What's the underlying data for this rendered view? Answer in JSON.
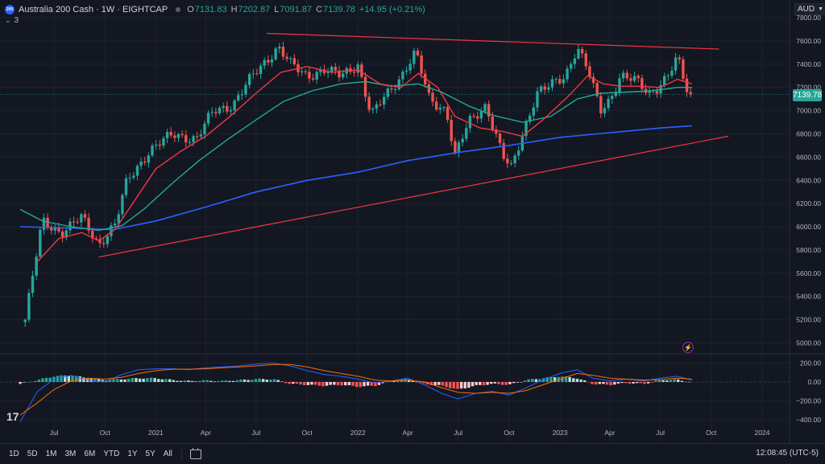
{
  "header": {
    "symbol_title": "Australia 200 Cash · 1W · EIGHTCAP",
    "logo_text": "200",
    "ohlc": [
      {
        "label": "O",
        "value": "7131.83"
      },
      {
        "label": "H",
        "value": "7202.87"
      },
      {
        "label": "L",
        "value": "7091.87"
      },
      {
        "label": "C",
        "value": "7139.78"
      }
    ],
    "change": "+14.95 (+0.21%)",
    "indicator_count": "3",
    "currency": "AUD"
  },
  "last_price": "7139.78",
  "bottombar": {
    "ranges": [
      "1D",
      "5D",
      "1M",
      "3M",
      "6M",
      "YTD",
      "1Y",
      "5Y",
      "All"
    ],
    "clock": "12:08:45 (UTC-5)"
  },
  "colors": {
    "bull": "#26a69a",
    "bear": "#ef5350",
    "ema_fast": "#f23645",
    "ema_mid": "#22ab94",
    "ma_slow": "#2962ff",
    "trendline": "#f23645",
    "macd": "#2962ff",
    "signal": "#ff6d00"
  },
  "chart_data": {
    "type": "candlestick",
    "timeframe": "1W",
    "yaxis": {
      "ticks": [
        7800,
        7600,
        7400,
        7200,
        7000,
        6800,
        6600,
        6400,
        6200,
        6000,
        5800,
        5600,
        5400,
        5200,
        5000
      ],
      "labels": [
        "7800.00",
        "7600.00",
        "7400.00",
        "7200.00",
        "7000.00",
        "6800.00",
        "6600.00",
        "6400.00",
        "6200.00",
        "6000.00",
        "5800.00",
        "5600.00",
        "5400.00",
        "5200.00",
        "5000.00"
      ],
      "ylim": [
        4900,
        7900
      ]
    },
    "xaxis": {
      "labels": [
        "Jul",
        "Oct",
        "2021",
        "Apr",
        "Jul",
        "Oct",
        "2022",
        "Apr",
        "Jul",
        "Oct",
        "2023",
        "Apr",
        "Jul",
        "Oct",
        "2024"
      ],
      "dates": [
        "2020-07-01",
        "2020-10-01",
        "2021-01-01",
        "2021-04-01",
        "2021-07-01",
        "2021-10-01",
        "2022-01-01",
        "2022-04-01",
        "2022-07-01",
        "2022-10-01",
        "2023-01-01",
        "2023-04-01",
        "2023-07-01",
        "2023-10-01",
        "2024-01-01"
      ]
    },
    "path": [
      [
        "2020-05-10",
        5200
      ],
      [
        "2020-06-10",
        6050
      ],
      [
        "2020-07-15",
        5950
      ],
      [
        "2020-08-20",
        6080
      ],
      [
        "2020-09-20",
        5850
      ],
      [
        "2020-10-20",
        6020
      ],
      [
        "2020-11-10",
        6400
      ],
      [
        "2020-12-20",
        6650
      ],
      [
        "2021-02-01",
        6800
      ],
      [
        "2021-03-15",
        6750
      ],
      [
        "2021-04-15",
        7000
      ],
      [
        "2021-05-20",
        7050
      ],
      [
        "2021-06-25",
        7300
      ],
      [
        "2021-08-10",
        7550
      ],
      [
        "2021-09-01",
        7400
      ],
      [
        "2021-10-01",
        7300
      ],
      [
        "2021-11-01",
        7350
      ],
      [
        "2021-12-01",
        7300
      ],
      [
        "2022-01-01",
        7400
      ],
      [
        "2022-01-25",
        6950
      ],
      [
        "2022-02-15",
        7100
      ],
      [
        "2022-03-20",
        7300
      ],
      [
        "2022-04-15",
        7500
      ],
      [
        "2022-05-10",
        7100
      ],
      [
        "2022-06-10",
        7000
      ],
      [
        "2022-06-25",
        6600
      ],
      [
        "2022-07-20",
        6900
      ],
      [
        "2022-08-20",
        7050
      ],
      [
        "2022-09-20",
        6600
      ],
      [
        "2022-10-05",
        6500
      ],
      [
        "2022-10-25",
        6800
      ],
      [
        "2022-11-20",
        7150
      ],
      [
        "2022-12-10",
        7200
      ],
      [
        "2023-01-10",
        7300
      ],
      [
        "2023-02-01",
        7550
      ],
      [
        "2023-02-20",
        7350
      ],
      [
        "2023-03-15",
        7000
      ],
      [
        "2023-04-01",
        7100
      ],
      [
        "2023-04-20",
        7300
      ],
      [
        "2023-05-20",
        7250
      ],
      [
        "2023-06-10",
        7150
      ],
      [
        "2023-06-25",
        7200
      ],
      [
        "2023-07-15",
        7300
      ],
      [
        "2023-08-01",
        7450
      ],
      [
        "2023-08-20",
        7150
      ],
      [
        "2023-08-27",
        7139.78
      ]
    ],
    "ema_fast": [
      [
        "2020-06-01",
        5700
      ],
      [
        "2020-07-10",
        5900
      ],
      [
        "2020-08-20",
        5950
      ],
      [
        "2020-09-20",
        5880
      ],
      [
        "2020-10-20",
        5980
      ],
      [
        "2020-11-20",
        6200
      ],
      [
        "2021-01-01",
        6500
      ],
      [
        "2021-02-15",
        6650
      ],
      [
        "2021-04-01",
        6780
      ],
      [
        "2021-05-15",
        6950
      ],
      [
        "2021-07-01",
        7150
      ],
      [
        "2021-08-15",
        7330
      ],
      [
        "2021-10-01",
        7380
      ],
      [
        "2021-11-15",
        7330
      ],
      [
        "2022-01-01",
        7350
      ],
      [
        "2022-02-10",
        7230
      ],
      [
        "2022-03-20",
        7200
      ],
      [
        "2022-04-20",
        7320
      ],
      [
        "2022-05-25",
        7200
      ],
      [
        "2022-06-25",
        6950
      ],
      [
        "2022-08-10",
        6850
      ],
      [
        "2022-09-20",
        6820
      ],
      [
        "2022-10-25",
        6780
      ],
      [
        "2022-12-01",
        6920
      ],
      [
        "2023-01-15",
        7120
      ],
      [
        "2023-02-20",
        7300
      ],
      [
        "2023-03-20",
        7230
      ],
      [
        "2023-04-20",
        7210
      ],
      [
        "2023-05-20",
        7210
      ],
      [
        "2023-07-01",
        7200
      ],
      [
        "2023-08-01",
        7270
      ],
      [
        "2023-08-27",
        7230
      ]
    ],
    "ema_mid": [
      [
        "2020-05-01",
        6150
      ],
      [
        "2020-06-10",
        6050
      ],
      [
        "2020-08-01",
        6000
      ],
      [
        "2020-09-20",
        5970
      ],
      [
        "2020-11-01",
        6010
      ],
      [
        "2020-12-10",
        6150
      ],
      [
        "2021-02-01",
        6380
      ],
      [
        "2021-03-20",
        6570
      ],
      [
        "2021-05-10",
        6750
      ],
      [
        "2021-07-01",
        6920
      ],
      [
        "2021-08-20",
        7080
      ],
      [
        "2021-10-10",
        7170
      ],
      [
        "2021-12-01",
        7230
      ],
      [
        "2022-01-15",
        7250
      ],
      [
        "2022-03-01",
        7210
      ],
      [
        "2022-04-20",
        7230
      ],
      [
        "2022-06-01",
        7160
      ],
      [
        "2022-07-20",
        7040
      ],
      [
        "2022-09-01",
        6960
      ],
      [
        "2022-10-25",
        6900
      ],
      [
        "2022-12-15",
        6950
      ],
      [
        "2023-02-01",
        7100
      ],
      [
        "2023-03-15",
        7150
      ],
      [
        "2023-05-01",
        7160
      ],
      [
        "2023-06-15",
        7170
      ],
      [
        "2023-08-01",
        7200
      ],
      [
        "2023-08-27",
        7200
      ]
    ],
    "ma_slow": [
      [
        "2020-05-01",
        6000
      ],
      [
        "2020-08-01",
        5990
      ],
      [
        "2020-10-15",
        5975
      ],
      [
        "2021-01-01",
        6050
      ],
      [
        "2021-04-01",
        6170
      ],
      [
        "2021-07-01",
        6300
      ],
      [
        "2021-10-01",
        6400
      ],
      [
        "2022-01-01",
        6470
      ],
      [
        "2022-04-01",
        6570
      ],
      [
        "2022-07-01",
        6640
      ],
      [
        "2022-10-01",
        6700
      ],
      [
        "2023-01-01",
        6770
      ],
      [
        "2023-04-01",
        6810
      ],
      [
        "2023-07-01",
        6850
      ],
      [
        "2023-08-27",
        6870
      ]
    ],
    "trendlines": [
      {
        "from": [
          "2020-09-20",
          5740
        ],
        "to": [
          "2023-11-01",
          6780
        ]
      },
      {
        "from": [
          "2021-07-20",
          7665
        ],
        "to": [
          "2023-10-15",
          7530
        ]
      }
    ],
    "macd": {
      "yaxis": {
        "ticks": [
          200,
          0,
          -200,
          -400
        ],
        "labels": [
          "200.00",
          "0.00",
          "−200.00",
          "−400.00"
        ],
        "ylim": [
          -460,
          240
        ]
      },
      "histogram": [
        [
          "2020-05-01",
          -20
        ],
        [
          "2020-06-01",
          20
        ],
        [
          "2020-07-01",
          60
        ],
        [
          "2020-08-01",
          70
        ],
        [
          "2020-09-01",
          40
        ],
        [
          "2020-10-01",
          20
        ],
        [
          "2020-11-01",
          30
        ],
        [
          "2020-12-01",
          40
        ],
        [
          "2021-01-01",
          40
        ],
        [
          "2021-02-01",
          20
        ],
        [
          "2021-03-01",
          10
        ],
        [
          "2021-04-01",
          15
        ],
        [
          "2021-05-01",
          10
        ],
        [
          "2021-06-01",
          20
        ],
        [
          "2021-07-01",
          30
        ],
        [
          "2021-08-01",
          30
        ],
        [
          "2021-09-01",
          -20
        ],
        [
          "2021-10-01",
          -30
        ],
        [
          "2021-11-01",
          -40
        ],
        [
          "2021-12-01",
          -30
        ],
        [
          "2022-01-01",
          -50
        ],
        [
          "2022-02-01",
          -40
        ],
        [
          "2022-03-01",
          10
        ],
        [
          "2022-04-01",
          30
        ],
        [
          "2022-05-01",
          -20
        ],
        [
          "2022-06-01",
          -40
        ],
        [
          "2022-07-01",
          -80
        ],
        [
          "2022-08-01",
          -40
        ],
        [
          "2022-09-01",
          -20
        ],
        [
          "2022-10-01",
          -30
        ],
        [
          "2022-11-01",
          20
        ],
        [
          "2022-12-01",
          40
        ],
        [
          "2023-01-01",
          60
        ],
        [
          "2023-02-01",
          40
        ],
        [
          "2023-03-01",
          -20
        ],
        [
          "2023-04-01",
          -30
        ],
        [
          "2023-05-01",
          -10
        ],
        [
          "2023-06-01",
          -20
        ],
        [
          "2023-07-01",
          20
        ],
        [
          "2023-08-01",
          25
        ],
        [
          "2023-08-27",
          -5
        ]
      ],
      "macd_line": [
        [
          "2020-05-01",
          -420
        ],
        [
          "2020-06-01",
          -100
        ],
        [
          "2020-07-01",
          30
        ],
        [
          "2020-08-01",
          70
        ],
        [
          "2020-09-01",
          20
        ],
        [
          "2020-10-01",
          0
        ],
        [
          "2020-11-01",
          80
        ],
        [
          "2020-12-01",
          130
        ],
        [
          "2021-01-01",
          140
        ],
        [
          "2021-02-01",
          140
        ],
        [
          "2021-03-01",
          130
        ],
        [
          "2021-04-01",
          150
        ],
        [
          "2021-05-01",
          160
        ],
        [
          "2021-06-01",
          170
        ],
        [
          "2021-07-01",
          190
        ],
        [
          "2021-08-01",
          200
        ],
        [
          "2021-09-01",
          170
        ],
        [
          "2021-10-01",
          120
        ],
        [
          "2021-11-01",
          80
        ],
        [
          "2021-12-01",
          60
        ],
        [
          "2022-01-01",
          30
        ],
        [
          "2022-02-01",
          -10
        ],
        [
          "2022-03-01",
          10
        ],
        [
          "2022-04-01",
          40
        ],
        [
          "2022-05-01",
          -30
        ],
        [
          "2022-06-01",
          -120
        ],
        [
          "2022-07-01",
          -180
        ],
        [
          "2022-08-01",
          -120
        ],
        [
          "2022-09-01",
          -100
        ],
        [
          "2022-10-01",
          -140
        ],
        [
          "2022-11-01",
          -60
        ],
        [
          "2022-12-01",
          20
        ],
        [
          "2023-01-01",
          90
        ],
        [
          "2023-02-01",
          130
        ],
        [
          "2023-03-01",
          40
        ],
        [
          "2023-04-01",
          10
        ],
        [
          "2023-05-01",
          30
        ],
        [
          "2023-06-01",
          10
        ],
        [
          "2023-07-01",
          40
        ],
        [
          "2023-08-01",
          60
        ],
        [
          "2023-08-27",
          20
        ]
      ],
      "signal_line": [
        [
          "2020-05-01",
          -350
        ],
        [
          "2020-06-01",
          -220
        ],
        [
          "2020-07-01",
          -80
        ],
        [
          "2020-08-01",
          10
        ],
        [
          "2020-09-01",
          40
        ],
        [
          "2020-10-01",
          30
        ],
        [
          "2020-11-01",
          50
        ],
        [
          "2020-12-01",
          90
        ],
        [
          "2021-01-01",
          120
        ],
        [
          "2021-02-01",
          135
        ],
        [
          "2021-03-01",
          135
        ],
        [
          "2021-04-01",
          140
        ],
        [
          "2021-05-01",
          150
        ],
        [
          "2021-06-01",
          160
        ],
        [
          "2021-07-01",
          170
        ],
        [
          "2021-08-01",
          185
        ],
        [
          "2021-09-01",
          185
        ],
        [
          "2021-10-01",
          160
        ],
        [
          "2021-11-01",
          120
        ],
        [
          "2021-12-01",
          90
        ],
        [
          "2022-01-01",
          60
        ],
        [
          "2022-02-01",
          20
        ],
        [
          "2022-03-01",
          10
        ],
        [
          "2022-04-01",
          20
        ],
        [
          "2022-05-01",
          0
        ],
        [
          "2022-06-01",
          -60
        ],
        [
          "2022-07-01",
          -110
        ],
        [
          "2022-08-01",
          -120
        ],
        [
          "2022-09-01",
          -110
        ],
        [
          "2022-10-01",
          -120
        ],
        [
          "2022-11-01",
          -90
        ],
        [
          "2022-12-01",
          -30
        ],
        [
          "2023-01-01",
          30
        ],
        [
          "2023-02-01",
          90
        ],
        [
          "2023-03-01",
          70
        ],
        [
          "2023-04-01",
          40
        ],
        [
          "2023-05-01",
          30
        ],
        [
          "2023-06-01",
          20
        ],
        [
          "2023-07-01",
          25
        ],
        [
          "2023-08-01",
          40
        ],
        [
          "2023-08-27",
          30
        ]
      ]
    }
  }
}
